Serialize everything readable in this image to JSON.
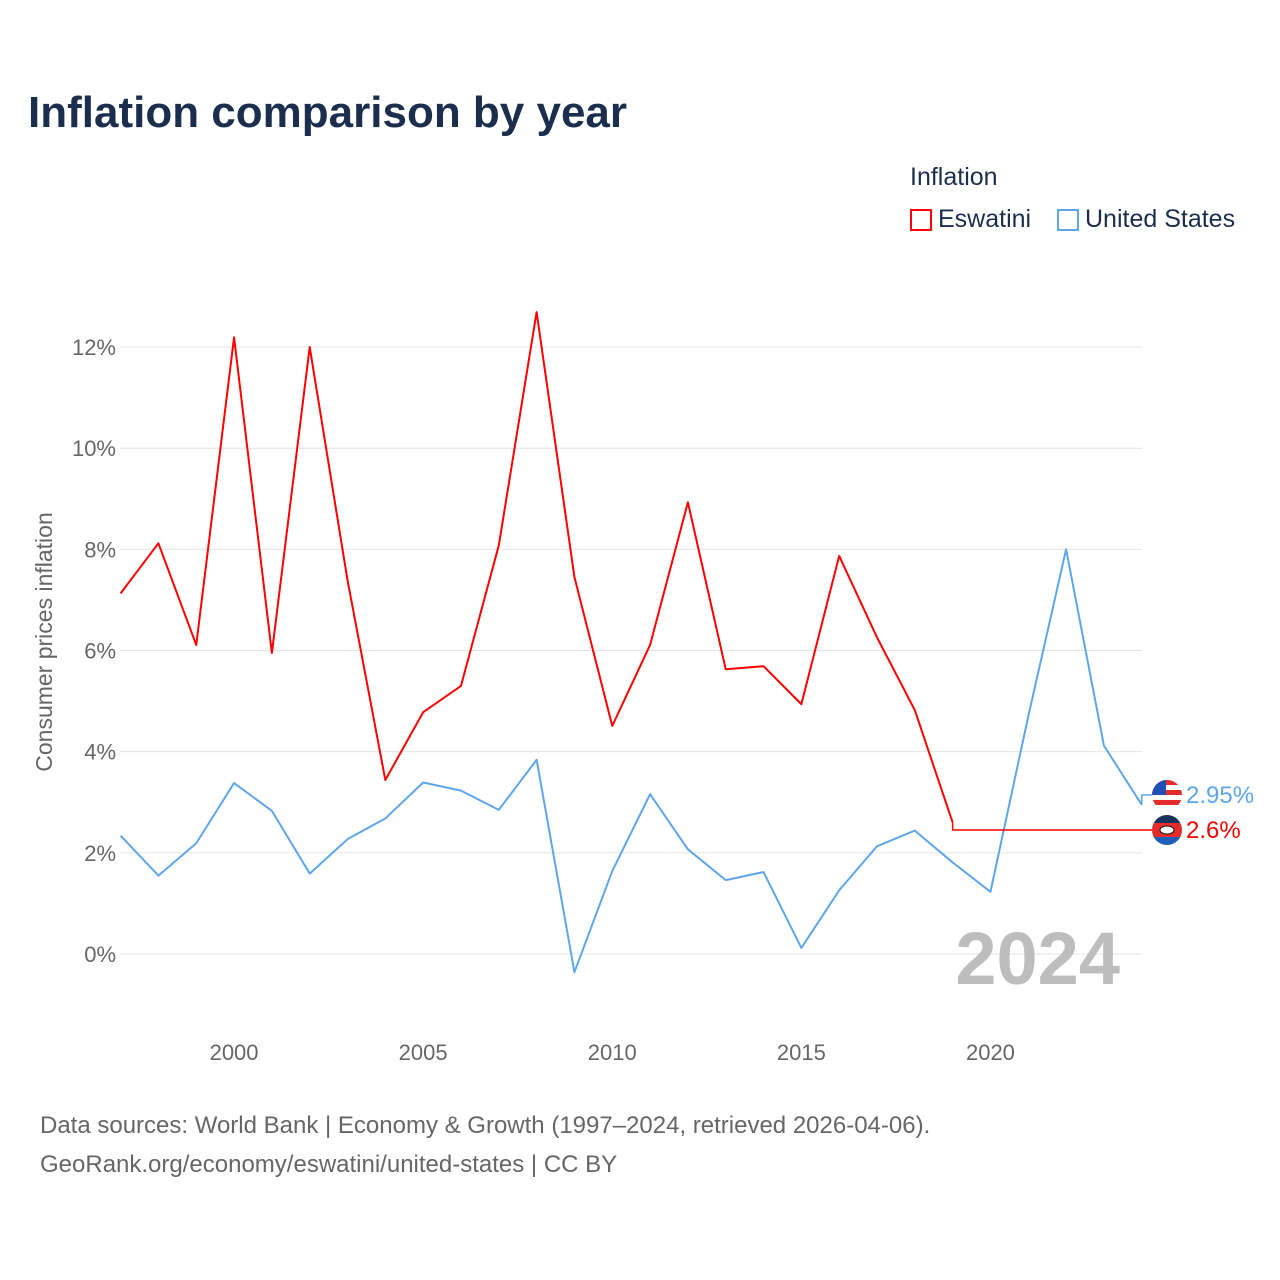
{
  "chart_data": {
    "type": "line",
    "title": "Inflation comparison by year",
    "xlabel": "",
    "ylabel": "Consumer prices inflation",
    "xlim": [
      1997,
      2024
    ],
    "ylim": [
      -1,
      13
    ],
    "yticks": [
      0,
      2,
      4,
      6,
      8,
      10,
      12
    ],
    "ytick_labels": [
      "0%",
      "2%",
      "4%",
      "6%",
      "8%",
      "10%",
      "12%"
    ],
    "xticks": [
      2000,
      2005,
      2010,
      2015,
      2020
    ],
    "xtick_labels": [
      "2000",
      "2005",
      "2010",
      "2015",
      "2020"
    ],
    "grid": true,
    "legend_title": "Inflation",
    "legend_placement": "top-right",
    "year_watermark": "2024",
    "series": [
      {
        "name": "Eswatini",
        "color": "#ff0000",
        "end_label": "2.6%",
        "x": [
          1997,
          1998,
          1999,
          2000,
          2001,
          2002,
          2003,
          2004,
          2005,
          2006,
          2007,
          2008,
          2009,
          2010,
          2011,
          2012,
          2013,
          2014,
          2015,
          2016,
          2017,
          2018,
          2019
        ],
        "values": [
          7.13,
          8.12,
          6.11,
          12.19,
          5.95,
          12.0,
          7.39,
          3.44,
          4.78,
          5.3,
          8.08,
          12.69,
          7.45,
          4.51,
          6.11,
          8.93,
          5.63,
          5.69,
          4.94,
          7.87,
          6.26,
          4.82,
          2.6
        ]
      },
      {
        "name": "United States",
        "color": "#5ea6ec",
        "end_label": "2.95%",
        "x": [
          1997,
          1998,
          1999,
          2000,
          2001,
          2002,
          2003,
          2004,
          2005,
          2006,
          2007,
          2008,
          2009,
          2010,
          2011,
          2012,
          2013,
          2014,
          2015,
          2016,
          2017,
          2018,
          2019,
          2020,
          2021,
          2022,
          2023,
          2024
        ],
        "values": [
          2.34,
          1.55,
          2.19,
          3.38,
          2.83,
          1.59,
          2.27,
          2.68,
          3.39,
          3.23,
          2.85,
          3.84,
          -0.36,
          1.64,
          3.16,
          2.07,
          1.46,
          1.62,
          0.12,
          1.26,
          2.13,
          2.44,
          1.81,
          1.23,
          4.7,
          8.0,
          4.12,
          2.95
        ]
      }
    ]
  },
  "source": {
    "line1": "Data sources: World Bank | Economy & Growth (1997–2024, retrieved 2026-04-06).",
    "line2": "GeoRank.org/economy/eswatini/united-states | CC BY"
  }
}
